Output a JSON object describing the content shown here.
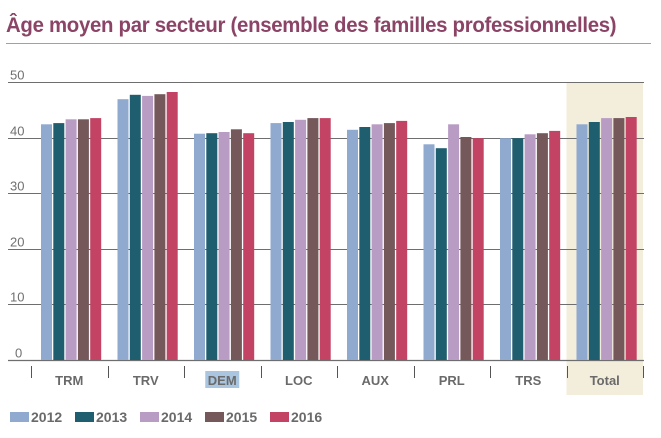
{
  "title": "Âge moyen par secteur (ensemble des familles professionnelles)",
  "chart_data": {
    "type": "bar",
    "title": "Âge moyen par secteur (ensemble des familles professionnelles)",
    "xlabel": "",
    "ylabel": "",
    "ylim": [
      0,
      50
    ],
    "yticks": [
      "0",
      "10",
      "20",
      "30",
      "40",
      "50"
    ],
    "grid": true,
    "legend_position": "bottom-left",
    "categories": [
      "TRM",
      "TRV",
      "DEM",
      "LOC",
      "AUX",
      "PRL",
      "TRS",
      "Total"
    ],
    "highlighted_category": "Total",
    "selected_label": "DEM",
    "series": [
      {
        "name": "2012",
        "color": "#8fa9cf",
        "values": [
          42.4,
          46.9,
          40.7,
          42.6,
          41.4,
          38.8,
          39.9,
          42.4
        ]
      },
      {
        "name": "2013",
        "color": "#1e5e6e",
        "values": [
          42.6,
          47.7,
          40.8,
          42.8,
          41.9,
          38.1,
          39.9,
          42.8
        ]
      },
      {
        "name": "2014",
        "color": "#b99cc4",
        "values": [
          43.3,
          47.5,
          41.0,
          43.2,
          42.4,
          42.4,
          40.6,
          43.5
        ]
      },
      {
        "name": "2015",
        "color": "#74585a",
        "values": [
          43.3,
          47.8,
          41.5,
          43.5,
          42.6,
          40.1,
          40.8,
          43.5
        ]
      },
      {
        "name": "2016",
        "color": "#c24363",
        "values": [
          43.5,
          48.2,
          40.8,
          43.5,
          43.0,
          39.9,
          41.2,
          43.7
        ]
      }
    ]
  },
  "colors": {
    "title": "#8b4466",
    "highlight_band": "#f3eddc",
    "selected_label_bg": "#a9c5df",
    "gridline": "#6e6e6e"
  }
}
